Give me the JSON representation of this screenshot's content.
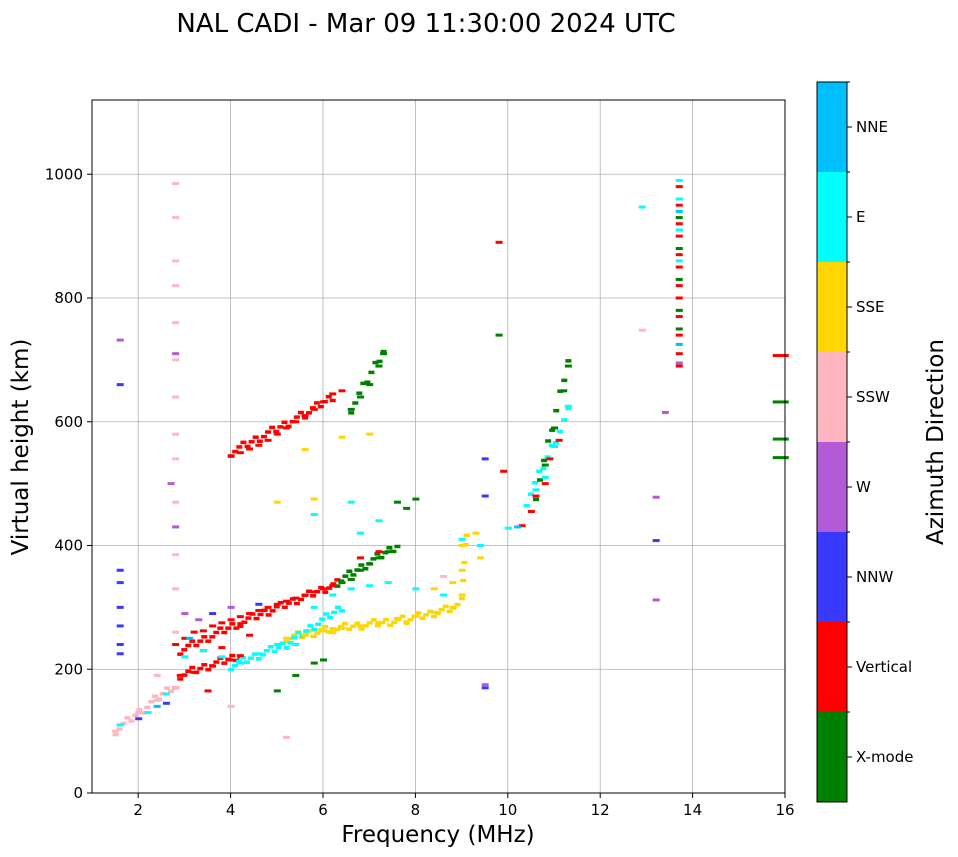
{
  "chart_data": {
    "type": "scatter",
    "title": "NAL CADI - Mar 09 11:30:00 2024 UTC",
    "xlabel": "Frequency (MHz)",
    "ylabel": "Virtual height (km)",
    "xlim": [
      1,
      16
    ],
    "ylim": [
      0,
      1120
    ],
    "xticks": [
      2,
      4,
      6,
      8,
      10,
      12,
      14,
      16
    ],
    "yticks": [
      0,
      200,
      400,
      600,
      800,
      1000
    ],
    "grid": true,
    "colorbar": {
      "label": "Azimuth Direction",
      "categories": [
        {
          "name": "X-mode",
          "color": "#008000"
        },
        {
          "name": "Vertical",
          "color": "#ff0000"
        },
        {
          "name": "NNW",
          "color": "#3a3aff"
        },
        {
          "name": "W",
          "color": "#b35ad6"
        },
        {
          "name": "SSW",
          "color": "#ffb6c1"
        },
        {
          "name": "SSE",
          "color": "#ffd700"
        },
        {
          "name": "E",
          "color": "#00ffff"
        },
        {
          "name": "NNE",
          "color": "#00bfff"
        }
      ]
    },
    "series": [
      {
        "name": "Vertical",
        "color": "#ff0000",
        "points": [
          [
            2.8,
            240
          ],
          [
            3.0,
            250
          ],
          [
            3.2,
            260
          ],
          [
            3.4,
            262
          ],
          [
            3.6,
            270
          ],
          [
            3.8,
            275
          ],
          [
            4.0,
            280
          ],
          [
            4.2,
            285
          ],
          [
            4.4,
            290
          ],
          [
            4.6,
            295
          ],
          [
            4.8,
            300
          ],
          [
            5.0,
            305
          ],
          [
            5.2,
            310
          ],
          [
            5.4,
            315
          ],
          [
            5.6,
            320
          ],
          [
            5.8,
            325
          ],
          [
            6.0,
            330
          ],
          [
            6.2,
            335
          ],
          [
            2.9,
            190
          ],
          [
            3.2,
            195
          ],
          [
            3.6,
            205
          ],
          [
            4.0,
            215
          ],
          [
            4.2,
            222
          ],
          [
            3.4,
            230
          ],
          [
            3.8,
            235
          ],
          [
            4.4,
            255
          ],
          [
            4.0,
            545
          ],
          [
            4.2,
            550
          ],
          [
            4.4,
            556
          ],
          [
            4.6,
            562
          ],
          [
            4.8,
            570
          ],
          [
            5.0,
            580
          ],
          [
            5.2,
            590
          ],
          [
            5.4,
            600
          ],
          [
            5.6,
            610
          ],
          [
            5.8,
            620
          ],
          [
            6.0,
            632
          ],
          [
            6.2,
            645
          ],
          [
            6.4,
            650
          ],
          [
            6.6,
            345
          ],
          [
            6.8,
            380
          ],
          [
            7.2,
            390
          ],
          [
            10.5,
            455
          ],
          [
            10.6,
            480
          ],
          [
            10.8,
            500
          ],
          [
            10.9,
            540
          ],
          [
            11.1,
            570
          ],
          [
            13.7,
            980
          ],
          [
            13.7,
            950
          ],
          [
            13.7,
            920
          ],
          [
            13.7,
            900
          ],
          [
            13.7,
            870
          ],
          [
            13.7,
            850
          ],
          [
            13.7,
            820
          ],
          [
            13.7,
            800
          ],
          [
            13.7,
            770
          ],
          [
            13.7,
            740
          ],
          [
            13.7,
            710
          ],
          [
            13.7,
            690
          ],
          [
            9.8,
            890
          ],
          [
            9.9,
            520
          ],
          [
            10.3,
            432
          ],
          [
            2.8,
            170
          ],
          [
            3.5,
            165
          ],
          [
            15.8,
            707
          ]
        ]
      },
      {
        "name": "X-mode",
        "color": "#008000",
        "points": [
          [
            5.0,
            165
          ],
          [
            5.4,
            190
          ],
          [
            5.8,
            210
          ],
          [
            6.0,
            215
          ],
          [
            6.4,
            340
          ],
          [
            6.6,
            345
          ],
          [
            6.8,
            360
          ],
          [
            7.0,
            370
          ],
          [
            7.2,
            380
          ],
          [
            7.4,
            390
          ],
          [
            6.6,
            620
          ],
          [
            6.8,
            640
          ],
          [
            7.0,
            660
          ],
          [
            7.2,
            690
          ],
          [
            7.3,
            710
          ],
          [
            7.6,
            470
          ],
          [
            7.8,
            460
          ],
          [
            8.0,
            475
          ],
          [
            9.8,
            740
          ],
          [
            10.8,
            530
          ],
          [
            11.0,
            590
          ],
          [
            11.2,
            650
          ],
          [
            11.3,
            690
          ],
          [
            13.7,
            930
          ],
          [
            13.7,
            880
          ],
          [
            13.7,
            830
          ],
          [
            13.7,
            780
          ],
          [
            13.7,
            750
          ],
          [
            15.8,
            632
          ],
          [
            15.8,
            572
          ],
          [
            15.8,
            542
          ]
        ]
      },
      {
        "name": "SSE",
        "color": "#ffd700",
        "points": [
          [
            5.2,
            250
          ],
          [
            5.6,
            255
          ],
          [
            6.0,
            262
          ],
          [
            6.4,
            266
          ],
          [
            6.8,
            270
          ],
          [
            7.2,
            275
          ],
          [
            7.6,
            282
          ],
          [
            8.0,
            286
          ],
          [
            8.4,
            292
          ],
          [
            8.8,
            300
          ],
          [
            9.0,
            320
          ],
          [
            9.0,
            360
          ],
          [
            9.0,
            400
          ],
          [
            9.3,
            420
          ],
          [
            9.4,
            380
          ],
          [
            8.4,
            330
          ],
          [
            8.8,
            340
          ],
          [
            5.0,
            470
          ],
          [
            5.8,
            475
          ],
          [
            6.4,
            575
          ],
          [
            7.0,
            580
          ],
          [
            5.6,
            555
          ]
        ]
      },
      {
        "name": "E",
        "color": "#00ffff",
        "points": [
          [
            1.6,
            110
          ],
          [
            2.2,
            130
          ],
          [
            2.6,
            160
          ],
          [
            3.0,
            220
          ],
          [
            3.4,
            230
          ],
          [
            3.8,
            220
          ],
          [
            4.2,
            210
          ],
          [
            4.6,
            225
          ],
          [
            5.0,
            240
          ],
          [
            5.4,
            240
          ],
          [
            5.8,
            300
          ],
          [
            6.2,
            320
          ],
          [
            6.6,
            330
          ],
          [
            7.0,
            335
          ],
          [
            7.4,
            340
          ],
          [
            8.0,
            330
          ],
          [
            8.6,
            320
          ],
          [
            9.0,
            410
          ],
          [
            9.4,
            400
          ],
          [
            10.0,
            428
          ],
          [
            10.6,
            490
          ],
          [
            10.8,
            510
          ],
          [
            11.0,
            560
          ],
          [
            11.3,
            625
          ],
          [
            12.9,
            947
          ],
          [
            13.7,
            990
          ],
          [
            13.7,
            960
          ],
          [
            13.7,
            910
          ],
          [
            13.7,
            860
          ],
          [
            6.6,
            470
          ],
          [
            7.2,
            440
          ],
          [
            6.8,
            420
          ],
          [
            5.8,
            450
          ]
        ]
      },
      {
        "name": "NNW",
        "color": "#3a3aff",
        "points": [
          [
            1.6,
            360
          ],
          [
            1.6,
            340
          ],
          [
            1.6,
            300
          ],
          [
            1.6,
            270
          ],
          [
            1.6,
            240
          ],
          [
            1.6,
            225
          ],
          [
            9.5,
            540
          ],
          [
            9.5,
            480
          ],
          [
            9.5,
            170
          ],
          [
            13.2,
            408
          ],
          [
            2.0,
            120
          ],
          [
            2.6,
            145
          ],
          [
            4.6,
            305
          ],
          [
            3.6,
            290
          ],
          [
            1.6,
            660
          ]
        ]
      },
      {
        "name": "W",
        "color": "#b35ad6",
        "points": [
          [
            1.6,
            732
          ],
          [
            2.7,
            500
          ],
          [
            2.8,
            430
          ],
          [
            3.0,
            290
          ],
          [
            3.3,
            280
          ],
          [
            4.0,
            300
          ],
          [
            2.8,
            710
          ],
          [
            13.2,
            478
          ],
          [
            13.4,
            615
          ],
          [
            13.2,
            312
          ],
          [
            13.7,
            695
          ],
          [
            9.5,
            175
          ]
        ]
      },
      {
        "name": "SSW",
        "color": "#ffb6c1",
        "points": [
          [
            1.5,
            100
          ],
          [
            2.0,
            130
          ],
          [
            2.4,
            150
          ],
          [
            2.4,
            190
          ],
          [
            2.8,
            170
          ],
          [
            2.8,
            260
          ],
          [
            2.8,
            330
          ],
          [
            2.8,
            385
          ],
          [
            2.8,
            470
          ],
          [
            2.8,
            540
          ],
          [
            2.8,
            580
          ],
          [
            2.8,
            640
          ],
          [
            2.8,
            700
          ],
          [
            2.8,
            760
          ],
          [
            2.8,
            820
          ],
          [
            2.8,
            860
          ],
          [
            2.8,
            930
          ],
          [
            2.8,
            985
          ],
          [
            12.9,
            748
          ],
          [
            8.6,
            350
          ],
          [
            4.0,
            140
          ],
          [
            5.2,
            90
          ]
        ]
      },
      {
        "name": "NNE",
        "color": "#00bfff",
        "points": [
          [
            2.4,
            140
          ],
          [
            3.1,
            250
          ],
          [
            13.7,
            940
          ],
          [
            13.7,
            725
          ],
          [
            10.2,
            430
          ]
        ]
      }
    ],
    "features": [
      {
        "name": "Vertical",
        "color": "#ff0000",
        "segments": [
          [
            4.0,
            550,
            5.6,
            612
          ],
          [
            5.6,
            612,
            6.2,
            640
          ],
          [
            2.9,
            230,
            4.2,
            275
          ],
          [
            4.2,
            275,
            6.3,
            338
          ],
          [
            2.9,
            190,
            4.2,
            222
          ]
        ]
      },
      {
        "name": "SSE",
        "color": "#ffd700",
        "segments": [
          [
            5.2,
            250,
            6.2,
            265
          ],
          [
            6.2,
            265,
            7.8,
            280
          ],
          [
            7.8,
            280,
            8.9,
            300
          ],
          [
            9.0,
            320,
            9.1,
            420
          ]
        ]
      },
      {
        "name": "E",
        "color": "#00ffff",
        "segments": [
          [
            4.0,
            205,
            5.2,
            240
          ],
          [
            5.2,
            240,
            6.4,
            300
          ],
          [
            10.4,
            470,
            11.3,
            615
          ]
        ]
      },
      {
        "name": "X-mode",
        "color": "#008000",
        "segments": [
          [
            6.3,
            340,
            7.6,
            400
          ],
          [
            6.6,
            620,
            7.3,
            715
          ],
          [
            10.6,
            480,
            11.3,
            700
          ]
        ]
      },
      {
        "name": "SSW",
        "color": "#ffb6c1",
        "segments": [
          [
            1.5,
            100,
            2.7,
            170
          ]
        ]
      }
    ]
  }
}
